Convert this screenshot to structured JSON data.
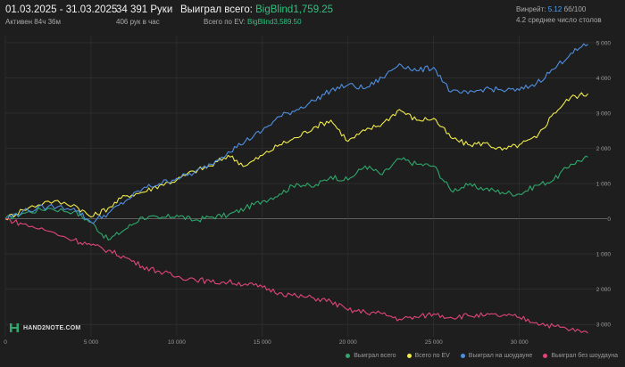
{
  "header": {
    "date_range": "01.03.2025 - 31.03.2025",
    "active_time": "Активен 84ч 36м",
    "hands_count": "34 391 Руки",
    "hands_per_hour": "406 рук в час",
    "won_label": "Выиграл всего:",
    "won_value": "BigBlind1,759.25",
    "ev_label": "Всего по EV:",
    "ev_value": "BigBlind3,589.50",
    "winrate_label": "Винрейт:",
    "winrate_value": "5.12",
    "winrate_unit": "бб/100",
    "avg_tables": "4.2 среднее число столов"
  },
  "brand": {
    "name": "HAND2NOTE.COM"
  },
  "colors": {
    "background": "#1e1e1e",
    "grid": "#353535",
    "green": "#2ea86b",
    "yellow": "#f0ea4a",
    "blue": "#4f8fe0",
    "pink": "#e0457a",
    "text_green": "#2ec27e",
    "text_blue": "#4aa3ff"
  },
  "chart_data": {
    "type": "line",
    "xlim": [
      0,
      34391
    ],
    "ylim": [
      -3300,
      5200
    ],
    "x_ticks": [
      0,
      5000,
      10000,
      15000,
      20000,
      25000,
      30000
    ],
    "x_tick_labels": [
      "0",
      "5 000",
      "10 000",
      "15 000",
      "20 000",
      "25 000",
      "30 000"
    ],
    "y_ticks": [
      5000,
      4000,
      3000,
      2000,
      1000,
      0,
      -1000,
      -2000,
      -3000
    ],
    "y_tick_labels": [
      "5 000",
      "4 000",
      "3 000",
      "2 000",
      "1 000",
      "0",
      "1 000",
      "2 000",
      "3 000"
    ],
    "grid": true,
    "legend_position": "bottom-right",
    "series": [
      {
        "name": "Выиграл всего",
        "color": "#2ea86b",
        "x": [
          0,
          1000,
          2500,
          4000,
          5000,
          6000,
          7000,
          8000,
          9000,
          10000,
          11000,
          12000,
          13000,
          14000,
          15000,
          16000,
          17000,
          18000,
          19000,
          20000,
          21000,
          22000,
          23000,
          24000,
          25000,
          26000,
          27000,
          28000,
          29000,
          30000,
          31000,
          32000,
          33000,
          34000
        ],
        "y": [
          0,
          150,
          300,
          200,
          -100,
          -600,
          -300,
          50,
          0,
          100,
          -50,
          50,
          100,
          300,
          500,
          700,
          1000,
          900,
          1200,
          1100,
          1500,
          1250,
          1700,
          1550,
          1500,
          800,
          950,
          850,
          750,
          700,
          950,
          1100,
          1550,
          1750
        ]
      },
      {
        "name": "Всего по EV",
        "color": "#f0ea4a",
        "x": [
          0,
          1000,
          2500,
          4000,
          5000,
          6000,
          7000,
          8000,
          9000,
          10000,
          11000,
          12000,
          13000,
          14000,
          15000,
          16000,
          17000,
          18000,
          19000,
          20000,
          21000,
          22000,
          23000,
          24000,
          25000,
          26000,
          27000,
          28000,
          29000,
          30000,
          31000,
          32000,
          33000,
          34000
        ],
        "y": [
          0,
          250,
          500,
          400,
          50,
          300,
          650,
          750,
          950,
          1100,
          1350,
          1500,
          1800,
          1500,
          1800,
          2100,
          2300,
          2600,
          2800,
          2200,
          2500,
          2700,
          3100,
          2800,
          2850,
          2300,
          2100,
          2150,
          1950,
          2100,
          2300,
          3000,
          3450,
          3550
        ]
      },
      {
        "name": "Выиграл на шоудауне",
        "color": "#4f8fe0",
        "x": [
          0,
          1000,
          2500,
          4000,
          5000,
          6000,
          7000,
          8000,
          9000,
          10000,
          11000,
          12000,
          13000,
          14000,
          15000,
          16000,
          17000,
          18000,
          19000,
          20000,
          21000,
          22000,
          23000,
          24000,
          25000,
          26000,
          27000,
          28000,
          29000,
          30000,
          31000,
          32000,
          33000,
          34000
        ],
        "y": [
          0,
          200,
          350,
          300,
          -100,
          150,
          500,
          850,
          1000,
          1150,
          1300,
          1550,
          1900,
          2200,
          2500,
          2900,
          3100,
          3350,
          3650,
          3800,
          3700,
          4000,
          4400,
          4200,
          4300,
          3600,
          3550,
          3700,
          3650,
          3650,
          3850,
          4250,
          4700,
          4950
        ]
      },
      {
        "name": "Выиграл без шоудауна",
        "color": "#e0457a",
        "x": [
          0,
          1000,
          2500,
          4000,
          5000,
          6000,
          7000,
          8000,
          9000,
          10000,
          11000,
          12000,
          13000,
          14000,
          15000,
          16000,
          17000,
          18000,
          19000,
          20000,
          21000,
          22000,
          23000,
          24000,
          25000,
          26000,
          27000,
          28000,
          29000,
          30000,
          31000,
          32000,
          33000,
          34000
        ],
        "y": [
          0,
          -150,
          -350,
          -600,
          -750,
          -900,
          -1100,
          -1350,
          -1500,
          -1650,
          -1700,
          -1800,
          -1800,
          -1850,
          -1950,
          -2100,
          -2200,
          -2250,
          -2350,
          -2600,
          -2650,
          -2700,
          -2850,
          -2800,
          -2700,
          -2800,
          -2750,
          -2750,
          -2750,
          -2800,
          -2950,
          -3050,
          -3150,
          -3250
        ]
      }
    ]
  }
}
